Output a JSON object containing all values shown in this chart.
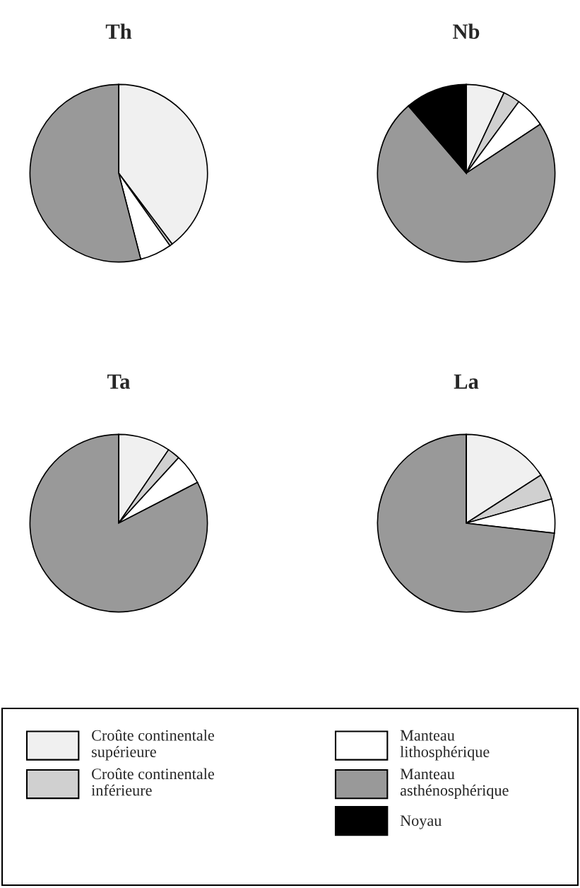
{
  "chart_data": [
    {
      "type": "pie",
      "title": "Th",
      "categories": [
        "Croûte continentale\nsupérieure",
        "Croûte continentale\ninférieure",
        "Manteau\nlithosphérique",
        "Manteau\nasthénosphérique",
        "Noyau"
      ],
      "values": [
        39.7,
        0.5,
        5.8,
        54.0,
        0
      ],
      "colors": [
        "#f0f0f0",
        "#d0d0d0",
        "#ffffff",
        "#999999",
        "#000000"
      ],
      "legend": "bottom"
    },
    {
      "type": "pie",
      "title": "Nb",
      "values": [
        7.0,
        3.1,
        5.6,
        73.0,
        11.3
      ],
      "colors": [
        "#f0f0f0",
        "#d0d0d0",
        "#ffffff",
        "#999999",
        "#000000"
      ]
    },
    {
      "type": "pie",
      "title": "Ta",
      "values": [
        9.5,
        2.3,
        5.6,
        82.6,
        0
      ],
      "colors": [
        "#f0f0f0",
        "#d0d0d0",
        "#ffffff",
        "#999999",
        "#000000"
      ]
    },
    {
      "type": "pie",
      "title": "La",
      "values": [
        15.9,
        4.7,
        6.2,
        73.2,
        0
      ],
      "colors": [
        "#f0f0f0",
        "#d0d0d0",
        "#ffffff",
        "#999999",
        "#000000"
      ]
    }
  ]
}
